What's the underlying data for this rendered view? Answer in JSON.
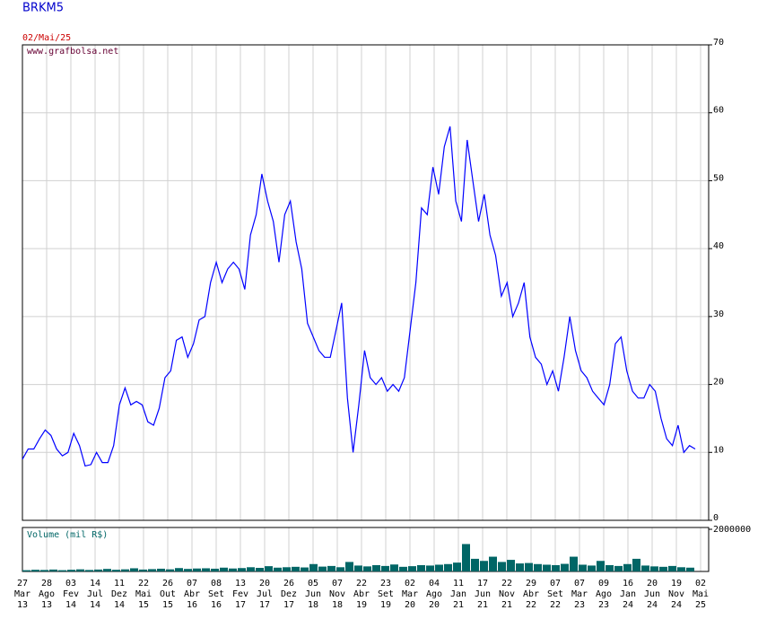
{
  "chart_data": [
    {
      "type": "line",
      "title": "BRKM5",
      "subtitle": "02/Mai/25",
      "annotation": "www.grafbolsa.net",
      "color": "#0000ff",
      "grid": true,
      "ylim": [
        0,
        70
      ],
      "yticks": [
        0,
        10,
        20,
        30,
        40,
        50,
        60,
        70
      ],
      "xticks": [
        [
          "27",
          "Mar",
          "13"
        ],
        [
          "28",
          "Ago",
          "13"
        ],
        [
          "03",
          "Fev",
          "14"
        ],
        [
          "14",
          "Jul",
          "14"
        ],
        [
          "11",
          "Dez",
          "14"
        ],
        [
          "22",
          "Mai",
          "15"
        ],
        [
          "26",
          "Out",
          "15"
        ],
        [
          "07",
          "Abr",
          "16"
        ],
        [
          "08",
          "Set",
          "16"
        ],
        [
          "13",
          "Fev",
          "17"
        ],
        [
          "20",
          "Jul",
          "17"
        ],
        [
          "26",
          "Dez",
          "17"
        ],
        [
          "05",
          "Jun",
          "18"
        ],
        [
          "07",
          "Nov",
          "18"
        ],
        [
          "22",
          "Abr",
          "19"
        ],
        [
          "23",
          "Set",
          "19"
        ],
        [
          "02",
          "Mar",
          "20"
        ],
        [
          "04",
          "Ago",
          "20"
        ],
        [
          "11",
          "Jan",
          "21"
        ],
        [
          "17",
          "Jun",
          "21"
        ],
        [
          "22",
          "Nov",
          "21"
        ],
        [
          "29",
          "Abr",
          "22"
        ],
        [
          "07",
          "Set",
          "22"
        ],
        [
          "07",
          "Mar",
          "23"
        ],
        [
          "09",
          "Ago",
          "23"
        ],
        [
          "16",
          "Jan",
          "24"
        ],
        [
          "20",
          "Jun",
          "24"
        ],
        [
          "19",
          "Nov",
          "24"
        ],
        [
          "02",
          "Mai",
          "25"
        ]
      ],
      "values": [
        9,
        10.5,
        10.5,
        12,
        13.3,
        12.5,
        10.5,
        9.5,
        10,
        12.8,
        11,
        8,
        8.2,
        10,
        8.5,
        8.5,
        11,
        17,
        19.5,
        17,
        17.5,
        17,
        14.5,
        14,
        16.5,
        21,
        22,
        26.5,
        27,
        24,
        26,
        29.5,
        30,
        35,
        38,
        35,
        37,
        38,
        37,
        34,
        42,
        45,
        51,
        47,
        44,
        38,
        45,
        47,
        41,
        37,
        29,
        27,
        25,
        24,
        24,
        28,
        32,
        18,
        10,
        17,
        25,
        21,
        20,
        21,
        19,
        20,
        19,
        21,
        28,
        35,
        46,
        45,
        52,
        48,
        55,
        58,
        47,
        44,
        56,
        50,
        44,
        48,
        42,
        39,
        33,
        35,
        30,
        32,
        35,
        27,
        24,
        23,
        20,
        22,
        19,
        24,
        30,
        25,
        22,
        21,
        19,
        18,
        17,
        20,
        26,
        27,
        22,
        19,
        18,
        18,
        20,
        19,
        15,
        12,
        11,
        14,
        10,
        11,
        10.5
      ]
    },
    {
      "type": "bar",
      "title": "Volume (mil R$)",
      "color": "#006666",
      "ylim": [
        0,
        2000000
      ],
      "yticks": [
        2000000
      ],
      "values": [
        60000,
        80000,
        70000,
        90000,
        60000,
        80000,
        100000,
        70000,
        90000,
        120000,
        80000,
        100000,
        150000,
        90000,
        110000,
        130000,
        100000,
        160000,
        120000,
        140000,
        150000,
        130000,
        180000,
        140000,
        160000,
        200000,
        170000,
        250000,
        180000,
        200000,
        220000,
        190000,
        350000,
        230000,
        260000,
        200000,
        450000,
        280000,
        240000,
        300000,
        260000,
        330000,
        220000,
        250000,
        300000,
        280000,
        320000,
        350000,
        420000,
        1300000,
        600000,
        500000,
        700000,
        450000,
        550000,
        380000,
        400000,
        350000,
        320000,
        300000,
        360000,
        700000,
        320000,
        280000,
        500000,
        300000,
        260000,
        350000,
        600000,
        280000,
        240000,
        220000,
        260000,
        200000,
        180000
      ]
    }
  ]
}
